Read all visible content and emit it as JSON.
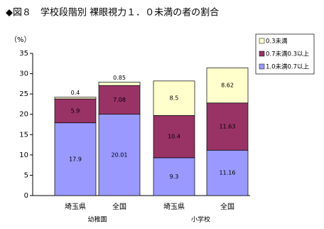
{
  "chart_data": {
    "type": "stacked-bar",
    "title": "◆図８　学校段階別 裸眼視力１．０未満の者の割合",
    "y_unit": "（%）",
    "categories": [
      "埼玉県",
      "全国",
      "埼玉県",
      "全国"
    ],
    "groups": [
      "幼稚園",
      "小学校"
    ],
    "series": [
      {
        "name": "1.0未満0.7以上",
        "color": "#9999ff",
        "values": [
          17.9,
          20.01,
          9.3,
          11.16
        ]
      },
      {
        "name": "0.7未満0.3以上",
        "color": "#993366",
        "values": [
          5.9,
          7.08,
          10.4,
          11.63
        ]
      },
      {
        "name": "0.3未満",
        "color": "#ffffcc",
        "values": [
          0.4,
          0.85,
          8.5,
          8.62
        ]
      }
    ],
    "ylim": [
      0,
      35
    ],
    "yticks": [
      0,
      5,
      10,
      15,
      20,
      25,
      30,
      35
    ],
    "grid": false,
    "legend": "right"
  }
}
